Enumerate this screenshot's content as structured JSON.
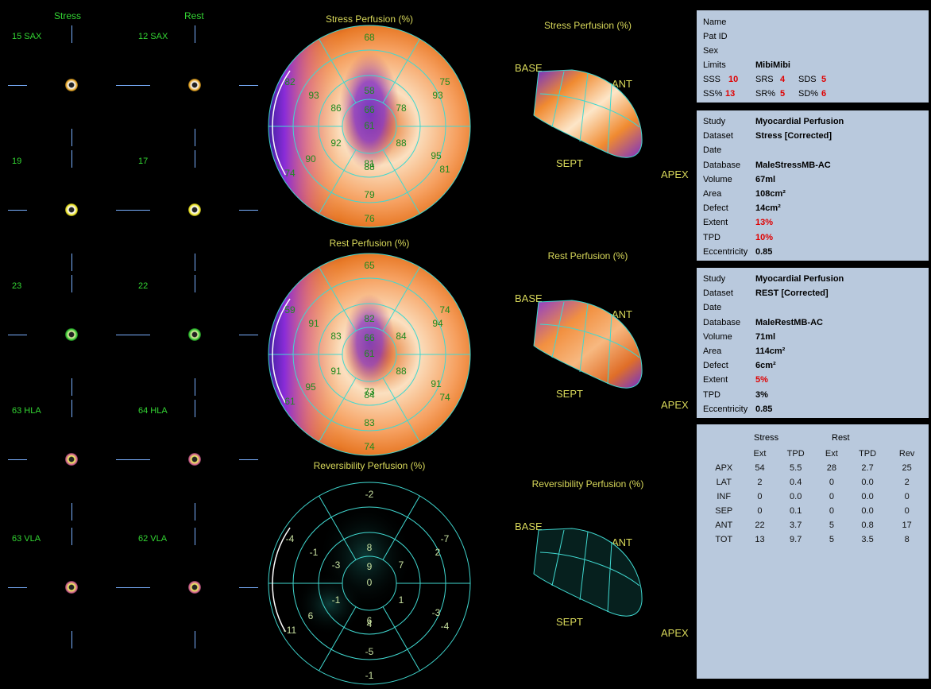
{
  "left": {
    "col_stress": "Stress",
    "col_rest": "Rest",
    "slices": [
      {
        "stress": "15 SAX",
        "rest": "12 SAX"
      },
      {
        "stress": "19",
        "rest": "17"
      },
      {
        "stress": "23",
        "rest": "22"
      },
      {
        "stress": "63 HLA",
        "rest": "64 HLA"
      },
      {
        "stress": "63 VLA",
        "rest": "62 VLA"
      }
    ]
  },
  "polar": {
    "stress": {
      "title": "Stress Perfusion (%)",
      "values": {
        "c": "61",
        "r0": [
          "66",
          "78",
          "88",
          "81",
          "92",
          "86"
        ],
        "r1": [
          "58",
          "93",
          "95",
          "88",
          "90",
          "93"
        ],
        "r2": [
          "68",
          "75",
          "81",
          "79",
          "76",
          "74",
          "82"
        ]
      }
    },
    "rest": {
      "title": "Rest Perfusion (%)",
      "values": {
        "c": "61",
        "r0": [
          "66",
          "84",
          "88",
          "73",
          "91",
          "83"
        ],
        "r1": [
          "82",
          "94",
          "91",
          "84",
          "95",
          "91"
        ],
        "r2": [
          "65",
          "74",
          "74",
          "83",
          "74",
          "61",
          "59"
        ]
      }
    },
    "rev": {
      "title": "Reversibility Perfusion (%)",
      "values": {
        "c": "0",
        "r0": [
          "9",
          "7",
          "1",
          "6",
          "-1",
          "-3"
        ],
        "r1": [
          "8",
          "2",
          "-3",
          "4",
          "6",
          "-1"
        ],
        "r2": [
          "-2",
          "-7",
          "-4",
          "-5",
          "-1",
          "-11",
          "-4"
        ]
      }
    }
  },
  "views3d": [
    {
      "title": "Stress Perfusion (%)",
      "base": "BASE",
      "ant": "ANT",
      "sept": "SEPT",
      "apex": "APEX"
    },
    {
      "title": "Rest Perfusion (%)",
      "base": "BASE",
      "ant": "ANT",
      "sept": "SEPT",
      "apex": "APEX"
    },
    {
      "title": "Reversibility Perfusion (%)",
      "base": "BASE",
      "ant": "ANT",
      "sept": "SEPT",
      "apex": "APEX"
    }
  ],
  "patient": {
    "name_label": "Name",
    "patid_label": "Pat ID",
    "sex_label": "Sex",
    "limits_label": "Limits",
    "limits_value": "MibiMibi",
    "sss_label": "SSS",
    "sss": "10",
    "srs_label": "SRS",
    "srs": "4",
    "sds_label": "SDS",
    "sds": "5",
    "ssp_label": "SS%",
    "ssp": "13",
    "srp_label": "SR%",
    "srp": "5",
    "sdp_label": "SD%",
    "sdp": "6"
  },
  "stress_info": {
    "study_label": "Study",
    "study": "Myocardial Perfusion",
    "dataset_label": "Dataset",
    "dataset": "Stress [Corrected]",
    "date_label": "Date",
    "database_label": "Database",
    "database": "MaleStressMB-AC",
    "volume_label": "Volume",
    "volume": "67ml",
    "area_label": "Area",
    "area": "108cm²",
    "defect_label": "Defect",
    "defect": "14cm²",
    "extent_label": "Extent",
    "extent": "13%",
    "tpd_label": "TPD",
    "tpd": "10%",
    "ecc_label": "Eccentricity",
    "ecc": "0.85"
  },
  "rest_info": {
    "study_label": "Study",
    "study": "Myocardial Perfusion",
    "dataset_label": "Dataset",
    "dataset": "REST [Corrected]",
    "date_label": "Date",
    "database_label": "Database",
    "database": "MaleRestMB-AC",
    "volume_label": "Volume",
    "volume": "71ml",
    "area_label": "Area",
    "area": "114cm²",
    "defect_label": "Defect",
    "defect": "6cm²",
    "extent_label": "Extent",
    "extent": "5%",
    "tpd_label": "TPD",
    "tpd": "3%",
    "ecc_label": "Eccentricity",
    "ecc": "0.85"
  },
  "table": {
    "group_stress": "Stress",
    "group_rest": "Rest",
    "headers": [
      "",
      "Ext",
      "TPD",
      "Ext",
      "TPD",
      "Rev"
    ],
    "rows": [
      [
        "APX",
        "54",
        "5.5",
        "28",
        "2.7",
        "25"
      ],
      [
        "LAT",
        "2",
        "0.4",
        "0",
        "0.0",
        "2"
      ],
      [
        "INF",
        "0",
        "0.0",
        "0",
        "0.0",
        "0"
      ],
      [
        "SEP",
        "0",
        "0.1",
        "0",
        "0.0",
        "0"
      ],
      [
        "ANT",
        "22",
        "3.7",
        "5",
        "0.8",
        "17"
      ],
      [
        "TOT",
        "13",
        "9.7",
        "5",
        "3.5",
        "8"
      ]
    ]
  }
}
